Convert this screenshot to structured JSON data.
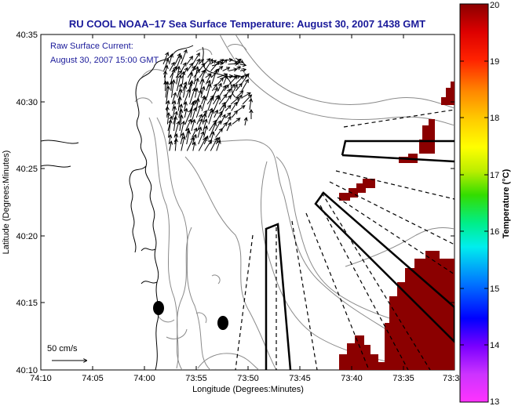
{
  "title": "RU COOL  NOAA–17  Sea Surface Temperature:  August 30, 2007 1438 GMT",
  "annotation": {
    "line1": "Raw Surface Current:",
    "line2": "August 30, 2007 15:00 GMT"
  },
  "scale": {
    "label": "50 cm/s"
  },
  "axes": {
    "xlabel": "Longitude (Degrees:Minutes)",
    "ylabel": "Latitude (Degrees:Minutes)",
    "xticks": [
      "74:10",
      "74:05",
      "74:00",
      "73:55",
      "73:50",
      "73:45",
      "73:40",
      "73:35",
      "73:3"
    ],
    "yticks": [
      "40:10",
      "40:15",
      "40:20",
      "40:25",
      "40:30",
      "40:35"
    ]
  },
  "colorbar": {
    "label": "Temperature (°C)",
    "ticks": [
      "13",
      "14",
      "15",
      "16",
      "17",
      "18",
      "19",
      "20"
    ],
    "min": 13,
    "max": 20,
    "patch_color": "#8b0000"
  },
  "colors": {
    "title_text": "#1a1a9a",
    "hot_sst": "#8b0000"
  }
}
